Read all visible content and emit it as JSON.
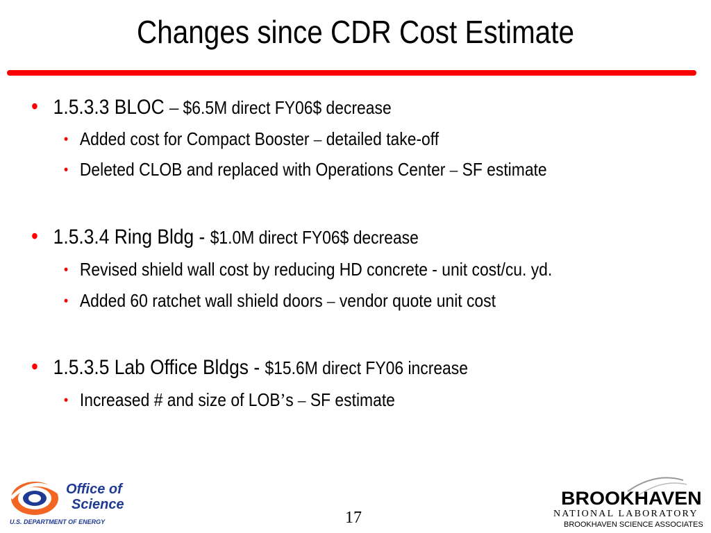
{
  "slide": {
    "title": "Changes since CDR Cost Estimate",
    "items": [
      {
        "head": "1.5.3.3 BLOC ",
        "dash": "–",
        "detail": " $6.5M direct FY06$ decrease",
        "subitems": [
          {
            "text": "Added cost for Compact Booster ",
            "dash": "–",
            "tail": " detailed take-off"
          },
          {
            "text": "Deleted CLOB and replaced with Operations Center ",
            "dash": "–",
            "tail": " SF estimate"
          }
        ]
      },
      {
        "head": "1.5.3.4 Ring Bldg - ",
        "detail": "$1.0M direct FY06$ decrease",
        "subitems": [
          {
            "text": "Revised shield wall cost by reducing HD concrete  - unit cost/cu. yd."
          },
          {
            "text": "Added 60 ratchet wall shield doors ",
            "dash": "–",
            "tail": " vendor quote unit cost"
          }
        ]
      },
      {
        "head": "1.5.3.5 Lab Office Bldgs - ",
        "detail": "$15.6M direct FY06 increase",
        "subitems": [
          {
            "text": "Increased # and size of LOB",
            "apos": "’",
            "text2": "s ",
            "dash": "–",
            "tail": " SF estimate"
          }
        ]
      }
    ],
    "bullet_main": "•",
    "bullet_sub": "•",
    "page_number": "17"
  },
  "footer": {
    "doe_office": "Office of",
    "doe_science": "Science",
    "doe_dept": "U.S. DEPARTMENT OF ENERGY",
    "bnl_name": "BROOKHAVEN",
    "bnl_lab": "NATIONAL LABORATORY",
    "bnl_assoc": "BROOKHAVEN SCIENCE ASSOCIATES"
  },
  "colors": {
    "accent": "#ff0000",
    "doe_blue": "#1f3a93",
    "doe_orange": "#f26522"
  }
}
